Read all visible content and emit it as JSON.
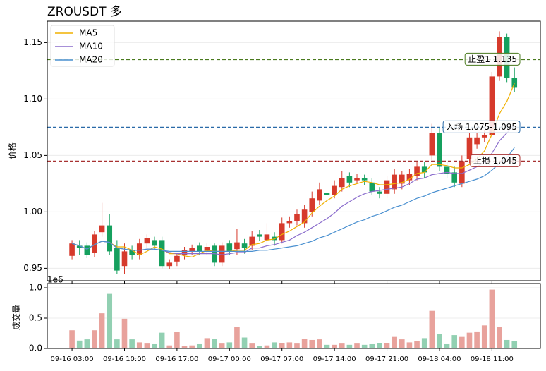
{
  "chart_data": [
    {
      "type": "candlestick",
      "title": "ZROUSDT 多",
      "ylabel": "价格",
      "x": [
        "09-16 03:00",
        "09-16 04:00",
        "09-16 05:00",
        "09-16 06:00",
        "09-16 07:00",
        "09-16 08:00",
        "09-16 09:00",
        "09-16 10:00",
        "09-16 11:00",
        "09-16 12:00",
        "09-16 13:00",
        "09-16 14:00",
        "09-16 15:00",
        "09-16 16:00",
        "09-16 17:00",
        "09-16 18:00",
        "09-16 19:00",
        "09-16 20:00",
        "09-16 21:00",
        "09-16 22:00",
        "09-16 23:00",
        "09-17 00:00",
        "09-17 01:00",
        "09-17 02:00",
        "09-17 03:00",
        "09-17 04:00",
        "09-17 05:00",
        "09-17 06:00",
        "09-17 07:00",
        "09-17 08:00",
        "09-17 09:00",
        "09-17 10:00",
        "09-17 11:00",
        "09-17 12:00",
        "09-17 13:00",
        "09-17 14:00",
        "09-17 15:00",
        "09-17 16:00",
        "09-17 17:00",
        "09-17 18:00",
        "09-17 19:00",
        "09-17 20:00",
        "09-17 21:00",
        "09-17 22:00",
        "09-17 23:00",
        "09-18 00:00",
        "09-18 01:00",
        "09-18 02:00",
        "09-18 03:00",
        "09-18 04:00",
        "09-18 05:00",
        "09-18 06:00",
        "09-18 07:00",
        "09-18 08:00",
        "09-18 09:00",
        "09-18 10:00",
        "09-18 11:00",
        "09-18 12:00",
        "09-18 13:00",
        "09-18 14:00"
      ],
      "open": [
        0.961,
        0.97,
        0.97,
        0.964,
        0.982,
        0.988,
        0.968,
        0.952,
        0.966,
        0.962,
        0.972,
        0.975,
        0.975,
        0.952,
        0.956,
        0.962,
        0.965,
        0.97,
        0.965,
        0.97,
        0.955,
        0.972,
        0.967,
        0.972,
        0.97,
        0.98,
        0.975,
        0.978,
        0.975,
        0.99,
        0.992,
        0.99,
        1.0,
        1.01,
        1.017,
        1.015,
        1.022,
        1.032,
        1.028,
        1.03,
        1.026,
        1.018,
        1.016,
        1.02,
        1.025,
        1.028,
        1.032,
        1.04,
        1.05,
        1.07,
        1.04,
        1.035,
        1.025,
        1.047,
        1.06,
        1.066,
        1.068,
        1.12,
        1.155,
        1.119
      ],
      "high": [
        0.975,
        0.975,
        0.973,
        0.983,
        1.008,
        0.998,
        0.975,
        0.972,
        0.97,
        0.976,
        0.98,
        0.978,
        0.978,
        0.958,
        0.964,
        0.969,
        0.971,
        0.973,
        0.972,
        0.972,
        0.973,
        0.975,
        0.985,
        0.976,
        0.983,
        0.984,
        0.99,
        0.982,
        0.995,
        0.996,
        1.002,
        1.006,
        1.018,
        1.026,
        1.022,
        1.028,
        1.036,
        1.035,
        1.034,
        1.033,
        1.03,
        1.022,
        1.032,
        1.038,
        1.036,
        1.038,
        1.045,
        1.044,
        1.078,
        1.074,
        1.045,
        1.04,
        1.05,
        1.07,
        1.07,
        1.072,
        1.124,
        1.16,
        1.158,
        1.128
      ],
      "low": [
        0.958,
        0.962,
        0.959,
        0.96,
        0.978,
        0.962,
        0.945,
        0.945,
        0.958,
        0.958,
        0.968,
        0.966,
        0.95,
        0.949,
        0.952,
        0.958,
        0.962,
        0.962,
        0.962,
        0.952,
        0.952,
        0.962,
        0.962,
        0.963,
        0.966,
        0.974,
        0.972,
        0.97,
        0.972,
        0.986,
        0.988,
        0.986,
        0.996,
        1.006,
        1.012,
        1.012,
        1.018,
        1.022,
        1.025,
        1.024,
        1.015,
        1.012,
        1.012,
        1.016,
        1.02,
        1.024,
        1.028,
        1.03,
        1.046,
        1.036,
        1.03,
        1.022,
        1.022,
        1.043,
        1.056,
        1.062,
        1.066,
        1.116,
        1.115,
        1.106
      ],
      "close": [
        0.972,
        0.968,
        0.962,
        0.98,
        0.988,
        0.965,
        0.948,
        0.965,
        0.962,
        0.972,
        0.977,
        0.97,
        0.952,
        0.955,
        0.961,
        0.966,
        0.968,
        0.965,
        0.969,
        0.955,
        0.97,
        0.965,
        0.973,
        0.968,
        0.978,
        0.978,
        0.98,
        0.975,
        0.99,
        0.992,
        0.998,
        1.002,
        1.012,
        1.02,
        1.015,
        1.023,
        1.03,
        1.026,
        1.03,
        1.028,
        1.018,
        1.016,
        1.028,
        1.033,
        1.033,
        1.034,
        1.04,
        1.035,
        1.07,
        1.04,
        1.034,
        1.026,
        1.045,
        1.066,
        1.066,
        1.068,
        1.12,
        1.155,
        1.119,
        1.11
      ],
      "up_color": "#d63a2c",
      "down_color": "#15a05e",
      "series": [
        {
          "name": "MA5",
          "color": "#f0b000",
          "values": [
            0.972,
            0.97,
            0.967,
            0.971,
            0.974,
            0.973,
            0.969,
            0.969,
            0.966,
            0.962,
            0.965,
            0.969,
            0.967,
            0.963,
            0.963,
            0.961,
            0.96,
            0.963,
            0.966,
            0.965,
            0.965,
            0.965,
            0.966,
            0.966,
            0.971,
            0.972,
            0.975,
            0.976,
            0.98,
            0.983,
            0.987,
            0.991,
            0.999,
            1.005,
            1.01,
            1.014,
            1.02,
            1.023,
            1.025,
            1.027,
            1.026,
            1.024,
            1.024,
            1.025,
            1.026,
            1.029,
            1.034,
            1.035,
            1.042,
            1.042,
            1.041,
            1.039,
            1.039,
            1.042,
            1.047,
            1.054,
            1.069,
            1.087,
            1.098,
            1.114
          ]
        },
        {
          "name": "MA10",
          "color": "#8a6ccc",
          "values": [
            0.972,
            0.97,
            0.967,
            0.971,
            0.974,
            0.973,
            0.968,
            0.967,
            0.966,
            0.966,
            0.967,
            0.967,
            0.966,
            0.964,
            0.963,
            0.963,
            0.963,
            0.963,
            0.963,
            0.963,
            0.962,
            0.963,
            0.964,
            0.964,
            0.968,
            0.968,
            0.97,
            0.971,
            0.973,
            0.975,
            0.979,
            0.982,
            0.986,
            0.99,
            0.994,
            0.999,
            1.005,
            1.009,
            1.013,
            1.016,
            1.018,
            1.019,
            1.02,
            1.021,
            1.022,
            1.025,
            1.029,
            1.03,
            1.033,
            1.034,
            1.035,
            1.034,
            1.034,
            1.037,
            1.04,
            1.044,
            1.052,
            1.063,
            1.07,
            1.077
          ]
        },
        {
          "name": "MA20",
          "color": "#4a90d0",
          "values": [
            0.972,
            0.97,
            0.967,
            0.971,
            0.974,
            0.973,
            0.968,
            0.967,
            0.966,
            0.966,
            0.967,
            0.967,
            0.966,
            0.965,
            0.965,
            0.965,
            0.965,
            0.965,
            0.965,
            0.965,
            0.965,
            0.965,
            0.965,
            0.965,
            0.965,
            0.966,
            0.966,
            0.967,
            0.968,
            0.969,
            0.97,
            0.972,
            0.974,
            0.977,
            0.979,
            0.982,
            0.985,
            0.988,
            0.991,
            0.993,
            0.996,
            0.998,
            1.001,
            1.004,
            1.006,
            1.009,
            1.012,
            1.014,
            1.017,
            1.019,
            1.021,
            1.023,
            1.025,
            1.027,
            1.029,
            1.032,
            1.037,
            1.043,
            1.048,
            1.057
          ]
        }
      ],
      "hlines": [
        {
          "value": 1.135,
          "label": "止盈1 1.135",
          "color": "#4a7a1e"
        },
        {
          "value": 1.075,
          "label": "入场 1.075-1.095",
          "color": "#2a6aa8"
        },
        {
          "value": 1.045,
          "label": "止损 1.045",
          "color": "#a83232"
        }
      ],
      "ylim": [
        0.939,
        1.169
      ],
      "yticks": [
        0.95,
        {
          "value": 1,
          "label": "1.00"
        },
        1.05,
        {
          "value": 1.1,
          "label": "1.10"
        },
        1.15
      ],
      "grid": true,
      "legend": "upper left"
    },
    {
      "type": "bar",
      "ylabel": "成交量",
      "offset_label": "1e6",
      "values": [
        0.3,
        0.13,
        0.15,
        0.3,
        0.58,
        0.9,
        0.15,
        0.49,
        0.15,
        0.1,
        0.08,
        0.07,
        0.26,
        0.05,
        0.27,
        0.04,
        0.05,
        0.07,
        0.17,
        0.16,
        0.08,
        0.1,
        0.35,
        0.18,
        0.08,
        0.04,
        0.05,
        0.1,
        0.09,
        0.1,
        0.08,
        0.16,
        0.14,
        0.15,
        0.06,
        0.06,
        0.08,
        0.06,
        0.08,
        0.06,
        0.07,
        0.09,
        0.09,
        0.19,
        0.15,
        0.1,
        0.12,
        0.17,
        0.62,
        0.24,
        0.07,
        0.22,
        0.19,
        0.26,
        0.28,
        0.38,
        0.97,
        0.36,
        0.14,
        0.12
      ],
      "up_color": "#e8a29c",
      "down_color": "#92d0b2",
      "ylim": [
        0,
        1.07
      ],
      "yticks": [
        {
          "value": 0,
          "label": "0.0"
        },
        0.5,
        {
          "value": 1,
          "label": "1.0"
        }
      ],
      "xticks": [
        "09-16 03:00",
        "09-16 10:00",
        "09-16 17:00",
        "09-17 00:00",
        "09-17 07:00",
        "09-17 14:00",
        "09-17 21:00",
        "09-18 04:00",
        "09-18 11:00"
      ]
    }
  ]
}
